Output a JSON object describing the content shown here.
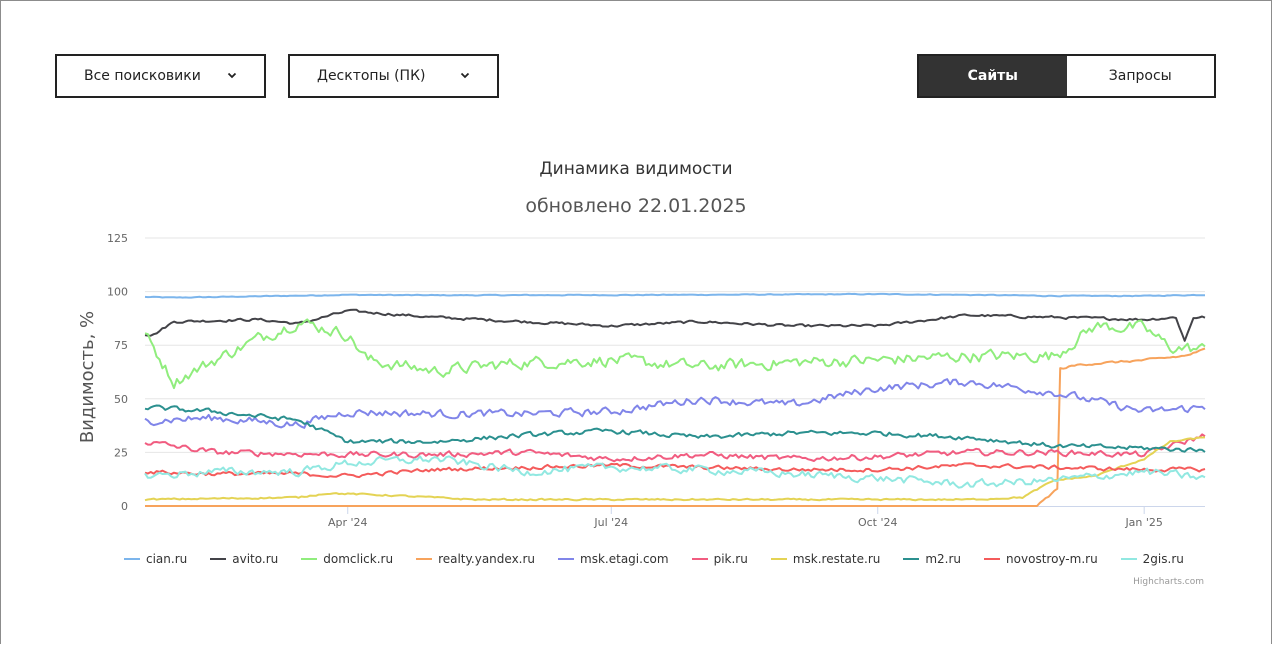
{
  "filters": {
    "engine": {
      "selected": "Все поисковики"
    },
    "device": {
      "selected": "Десктопы (ПК)"
    }
  },
  "view_toggle": {
    "active": "Сайты",
    "inactive": "Запросы"
  },
  "icons": {
    "dropdown": "chevron-down-icon"
  },
  "credits": "Highcharts.com",
  "chart_data": {
    "type": "line",
    "title": "Динамика видимости",
    "subtitle": "обновлено 22.01.2025",
    "ylabel": "Видимость, %",
    "xlabel": "",
    "ylim": [
      0,
      125
    ],
    "yticks": [
      0,
      25,
      50,
      75,
      100,
      125
    ],
    "xlim": [
      "2024-01-22",
      "2025-01-22"
    ],
    "xticks": [
      "2024-04-01",
      "2024-07-01",
      "2024-10-01",
      "2025-01-01"
    ],
    "xtick_labels": [
      "Apr '24",
      "Jul '24",
      "Oct '24",
      "Jan '25"
    ],
    "grid": true,
    "legend": "bottom",
    "series": [
      {
        "name": "cian.ru",
        "color": "#7cb5ec",
        "noise": 0.3,
        "points": [
          [
            "2024-01-22",
            97.5
          ],
          [
            "2024-02-01",
            97.2
          ],
          [
            "2024-03-01",
            97.8
          ],
          [
            "2024-04-01",
            98.5
          ],
          [
            "2024-05-01",
            98.3
          ],
          [
            "2024-07-01",
            98.4
          ],
          [
            "2024-10-01",
            98.8
          ],
          [
            "2024-11-01",
            98.5
          ],
          [
            "2024-12-01",
            98.0
          ],
          [
            "2025-01-01",
            98.0
          ],
          [
            "2025-01-22",
            98.5
          ]
        ]
      },
      {
        "name": "avito.ru",
        "color": "#434348",
        "noise": 1.0,
        "points": [
          [
            "2024-01-22",
            80
          ],
          [
            "2024-01-25",
            80
          ],
          [
            "2024-02-01",
            86
          ],
          [
            "2024-03-01",
            87
          ],
          [
            "2024-03-15",
            85
          ],
          [
            "2024-04-01",
            91
          ],
          [
            "2024-05-01",
            88
          ],
          [
            "2024-06-01",
            86
          ],
          [
            "2024-07-01",
            84
          ],
          [
            "2024-08-01",
            86
          ],
          [
            "2024-09-01",
            84
          ],
          [
            "2024-10-01",
            84
          ],
          [
            "2024-11-01",
            89
          ],
          [
            "2024-12-01",
            88
          ],
          [
            "2025-01-01",
            87
          ],
          [
            "2025-01-12",
            88
          ],
          [
            "2025-01-15",
            77
          ],
          [
            "2025-01-18",
            88
          ],
          [
            "2025-01-22",
            88
          ]
        ]
      },
      {
        "name": "domclick.ru",
        "color": "#90ed7d",
        "noise": 4.5,
        "points": [
          [
            "2024-01-22",
            80
          ],
          [
            "2024-02-01",
            58
          ],
          [
            "2024-02-15",
            68
          ],
          [
            "2024-03-01",
            78
          ],
          [
            "2024-03-15",
            86
          ],
          [
            "2024-04-01",
            80
          ],
          [
            "2024-04-08",
            68
          ],
          [
            "2024-05-01",
            63
          ],
          [
            "2024-06-01",
            67
          ],
          [
            "2024-07-01",
            68
          ],
          [
            "2024-08-01",
            65
          ],
          [
            "2024-09-01",
            67
          ],
          [
            "2024-10-01",
            68
          ],
          [
            "2024-11-01",
            70
          ],
          [
            "2024-12-01",
            70
          ],
          [
            "2024-12-15",
            84
          ],
          [
            "2025-01-01",
            83
          ],
          [
            "2025-01-10",
            74
          ],
          [
            "2025-01-22",
            73
          ]
        ]
      },
      {
        "name": "realty.yandex.ru",
        "color": "#f7a35c",
        "noise": 0.8,
        "points": [
          [
            "2024-01-22",
            0
          ],
          [
            "2024-11-25",
            0
          ],
          [
            "2024-12-02",
            8
          ],
          [
            "2024-12-03",
            64
          ],
          [
            "2024-12-10",
            66
          ],
          [
            "2025-01-01",
            68
          ],
          [
            "2025-01-15",
            70
          ],
          [
            "2025-01-22",
            73
          ]
        ]
      },
      {
        "name": "msk.etagi.com",
        "color": "#8085e9",
        "noise": 3.0,
        "points": [
          [
            "2024-01-22",
            40
          ],
          [
            "2024-02-15",
            41
          ],
          [
            "2024-03-15",
            38
          ],
          [
            "2024-04-01",
            44
          ],
          [
            "2024-05-01",
            43
          ],
          [
            "2024-06-01",
            43
          ],
          [
            "2024-07-01",
            44
          ],
          [
            "2024-08-01",
            50
          ],
          [
            "2024-09-01",
            47
          ],
          [
            "2024-10-01",
            55
          ],
          [
            "2024-11-01",
            58
          ],
          [
            "2024-12-01",
            53
          ],
          [
            "2025-01-01",
            44
          ],
          [
            "2025-01-22",
            46
          ]
        ]
      },
      {
        "name": "pik.ru",
        "color": "#f15c80",
        "noise": 2.2,
        "points": [
          [
            "2024-01-22",
            30
          ],
          [
            "2024-02-15",
            25
          ],
          [
            "2024-04-01",
            24
          ],
          [
            "2024-05-01",
            24
          ],
          [
            "2024-06-01",
            25
          ],
          [
            "2024-07-01",
            22
          ],
          [
            "2024-08-01",
            24
          ],
          [
            "2024-09-01",
            22
          ],
          [
            "2024-10-01",
            23
          ],
          [
            "2024-11-01",
            25
          ],
          [
            "2024-12-01",
            25
          ],
          [
            "2025-01-01",
            24
          ],
          [
            "2025-01-22",
            33
          ]
        ]
      },
      {
        "name": "msk.restate.ru",
        "color": "#e4d354",
        "noise": 0.6,
        "points": [
          [
            "2024-01-22",
            3
          ],
          [
            "2024-03-15",
            4
          ],
          [
            "2024-03-25",
            6
          ],
          [
            "2024-04-15",
            5
          ],
          [
            "2024-05-15",
            3
          ],
          [
            "2024-07-01",
            3
          ],
          [
            "2024-09-01",
            3
          ],
          [
            "2024-11-01",
            3
          ],
          [
            "2024-11-20",
            4
          ],
          [
            "2024-12-01",
            12
          ],
          [
            "2024-12-15",
            14
          ],
          [
            "2025-01-01",
            22
          ],
          [
            "2025-01-10",
            30
          ],
          [
            "2025-01-22",
            32
          ]
        ]
      },
      {
        "name": "m2.ru",
        "color": "#2b908f",
        "noise": 1.8,
        "points": [
          [
            "2024-01-22",
            46
          ],
          [
            "2024-02-15",
            44
          ],
          [
            "2024-03-15",
            40
          ],
          [
            "2024-04-01",
            30
          ],
          [
            "2024-05-01",
            30
          ],
          [
            "2024-06-01",
            33
          ],
          [
            "2024-07-01",
            35
          ],
          [
            "2024-08-01",
            32
          ],
          [
            "2024-09-01",
            34
          ],
          [
            "2024-10-01",
            34
          ],
          [
            "2024-11-01",
            32
          ],
          [
            "2024-12-01",
            28
          ],
          [
            "2025-01-01",
            27
          ],
          [
            "2025-01-22",
            26
          ]
        ]
      },
      {
        "name": "novostroy-m.ru",
        "color": "#f45b5b",
        "noise": 1.5,
        "points": [
          [
            "2024-01-22",
            16
          ],
          [
            "2024-02-15",
            15
          ],
          [
            "2024-03-15",
            15
          ],
          [
            "2024-04-01",
            14
          ],
          [
            "2024-05-01",
            17
          ],
          [
            "2024-07-01",
            19
          ],
          [
            "2024-09-01",
            17
          ],
          [
            "2024-10-01",
            17
          ],
          [
            "2024-11-01",
            19
          ],
          [
            "2024-12-01",
            18
          ],
          [
            "2025-01-01",
            17
          ],
          [
            "2025-01-22",
            17
          ]
        ]
      },
      {
        "name": "2gis.ru",
        "color": "#91e8e1",
        "noise": 3.0,
        "points": [
          [
            "2024-01-22",
            14
          ],
          [
            "2024-02-15",
            16
          ],
          [
            "2024-03-15",
            16
          ],
          [
            "2024-04-01",
            20
          ],
          [
            "2024-05-01",
            22
          ],
          [
            "2024-06-01",
            16
          ],
          [
            "2024-07-01",
            18
          ],
          [
            "2024-08-01",
            17
          ],
          [
            "2024-09-01",
            15
          ],
          [
            "2024-10-01",
            13
          ],
          [
            "2024-11-01",
            10
          ],
          [
            "2024-12-01",
            12
          ],
          [
            "2025-01-01",
            16
          ],
          [
            "2025-01-22",
            13
          ]
        ]
      }
    ]
  }
}
